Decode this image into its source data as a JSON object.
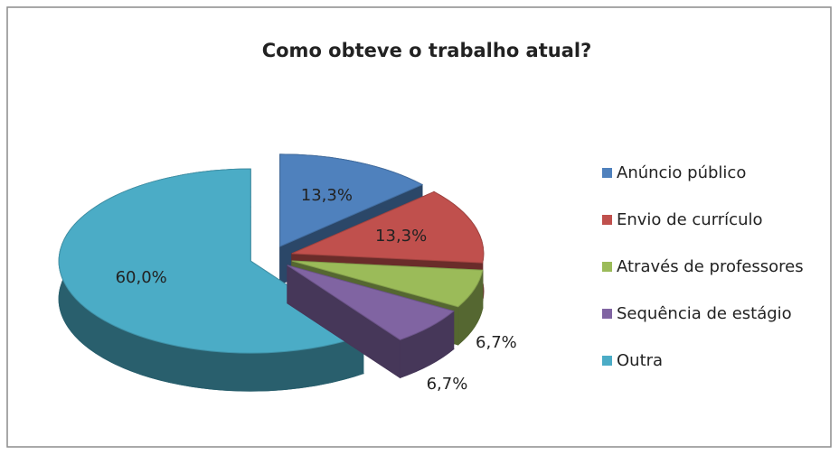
{
  "chart_data": {
    "type": "pie3d",
    "title": "Como obteve o trabalho atual?",
    "categories": [
      "Anúncio público",
      "Envio de currículo",
      "Através de professores",
      "Sequência de estágio",
      "Outra"
    ],
    "values": [
      13.3,
      13.3,
      6.7,
      6.7,
      60.0
    ],
    "value_labels": [
      "13,3%",
      "13,3%",
      "6,7%",
      "6,7%",
      "60,0%"
    ],
    "colors": [
      "#4f81bd",
      "#c0504d",
      "#9bbb59",
      "#8064a2",
      "#4bacc6"
    ],
    "legend": "right"
  }
}
